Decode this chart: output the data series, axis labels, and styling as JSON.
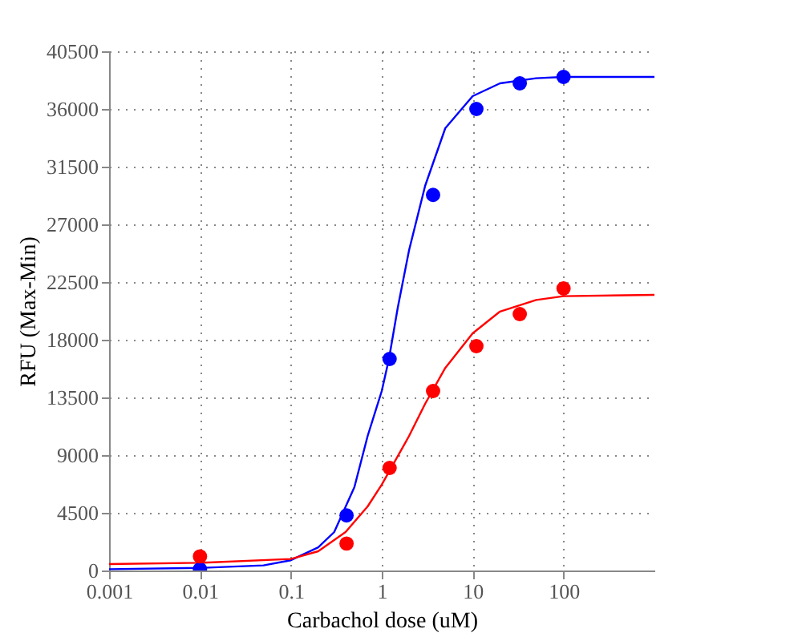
{
  "chart_data": {
    "type": "scatter",
    "xlabel": "Carbachol dose (uM)",
    "ylabel": "RFU (Max-Min)",
    "log": "x",
    "grid": true,
    "xlim": [
      0.001,
      1000
    ],
    "xticks": [
      0.001,
      0.01,
      0.1,
      1,
      10,
      100
    ],
    "ylim": [
      0,
      40500
    ],
    "yticks": [
      0,
      4500,
      9000,
      13500,
      18000,
      22500,
      27000,
      31500,
      36000,
      40500
    ],
    "series": [
      {
        "type": "line",
        "color": "#0000ff",
        "x": [
          0.001,
          0.01,
          0.05,
          0.1,
          0.2,
          0.3,
          0.5,
          0.7,
          1,
          1.2,
          1.5,
          2,
          3,
          5,
          10,
          20,
          50,
          100,
          1000
        ],
        "values": [
          100,
          200,
          400,
          800,
          1800,
          3000,
          6500,
          10500,
          14000,
          16500,
          20500,
          25000,
          30000,
          34500,
          37000,
          38000,
          38400,
          38500,
          38500
        ]
      },
      {
        "type": "line",
        "color": "#ff0000",
        "x": [
          0.001,
          0.01,
          0.1,
          0.2,
          0.4,
          0.7,
          1,
          2,
          3,
          5,
          10,
          20,
          50,
          100,
          1000
        ],
        "values": [
          500,
          600,
          900,
          1500,
          3000,
          5000,
          6700,
          10500,
          13000,
          15800,
          18500,
          20200,
          21100,
          21400,
          21500
        ]
      },
      {
        "color": "#0000ff",
        "marker": "circle",
        "x": [
          0.01,
          0.41,
          1.22,
          3.67,
          11,
          33,
          100
        ],
        "values": [
          100,
          4300,
          16500,
          29300,
          36000,
          38000,
          38500
        ]
      },
      {
        "color": "#ff0000",
        "marker": "circle",
        "x": [
          0.01,
          0.41,
          1.22,
          3.67,
          11,
          33,
          100
        ],
        "values": [
          1100,
          2100,
          8000,
          14000,
          17500,
          20000,
          22000
        ]
      }
    ]
  }
}
